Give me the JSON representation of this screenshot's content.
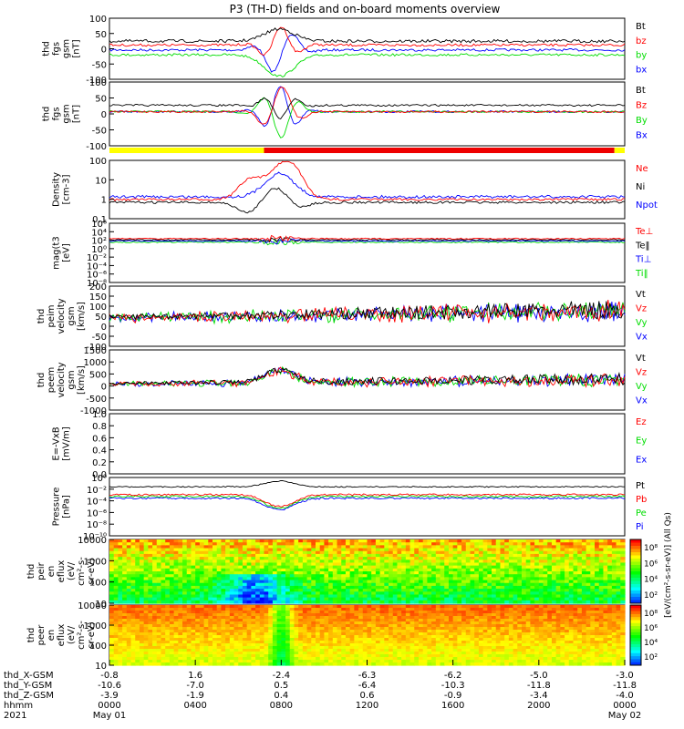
{
  "title": "P3 (TH-D) fields and on-board moments overview",
  "colors": {
    "black": "#000000",
    "red": "#ff0000",
    "green": "#00dd00",
    "blue": "#0000ff",
    "yellow": "#ffff00",
    "bar_red": "#ee0000"
  },
  "chart_data": [
    {
      "type": "line",
      "name": "fgs",
      "ylabel": [
        "thd",
        "fgs",
        "gsm",
        "[nT]"
      ],
      "yticks": [
        "100",
        "50",
        "0",
        "-50",
        "-100"
      ],
      "legend": [
        {
          "text": "Bt",
          "color": "#000000"
        },
        {
          "text": "bz",
          "color": "#ff0000"
        },
        {
          "text": "by",
          "color": "#00dd00"
        },
        {
          "text": "bx",
          "color": "#0000ff"
        }
      ]
    },
    {
      "type": "line",
      "name": "fgs-zoom",
      "ylabel": [
        "thd",
        "fgs",
        "gsm",
        "[nT]"
      ],
      "yticks": [
        "100",
        "50",
        "0",
        "-50",
        "-100"
      ],
      "legend": [
        {
          "text": "Bt",
          "color": "#000000"
        },
        {
          "text": "Bz",
          "color": "#ff0000"
        },
        {
          "text": "By",
          "color": "#00dd00"
        },
        {
          "text": "Bx",
          "color": "#0000ff"
        }
      ],
      "mode_bar": [
        {
          "from": 0,
          "to": 0.3,
          "color": "#ffff00"
        },
        {
          "from": 0.3,
          "to": 0.98,
          "color": "#ee0000"
        },
        {
          "from": 0.98,
          "to": 1,
          "color": "#ffff00"
        }
      ]
    },
    {
      "type": "line",
      "name": "density",
      "ylabel": [
        "Density",
        "[cm-3]"
      ],
      "yticks": [
        "100",
        "10",
        "1",
        "0.1"
      ],
      "legend": [
        {
          "text": "Ne",
          "color": "#ff0000"
        },
        {
          "text": "Ni",
          "color": "#000000"
        },
        {
          "text": "Npot",
          "color": "#0000ff"
        }
      ]
    },
    {
      "type": "line",
      "name": "temperature",
      "ylabel": [
        "mag(t3",
        "[eV]"
      ],
      "yticks": [
        "10⁶",
        "10⁴",
        "10²",
        "10⁰",
        "10⁻²",
        "10⁻⁴",
        "10⁻⁶",
        "10⁻⁸"
      ],
      "legend": [
        {
          "text": "Te⊥",
          "color": "#ff0000"
        },
        {
          "text": "Te‖",
          "color": "#000000"
        },
        {
          "text": "Ti⊥",
          "color": "#0000ff"
        },
        {
          "text": "Ti‖",
          "color": "#00dd00"
        }
      ]
    },
    {
      "type": "line",
      "name": "peim-velocity",
      "ylabel": [
        "thd",
        "peim",
        "velocity",
        "gsm",
        "[km/s]"
      ],
      "yticks": [
        "200",
        "150",
        "100",
        "50",
        "0",
        "-50",
        "-100"
      ],
      "legend": [
        {
          "text": "Vt",
          "color": "#000000"
        },
        {
          "text": "Vz",
          "color": "#ff0000"
        },
        {
          "text": "Vy",
          "color": "#00dd00"
        },
        {
          "text": "Vx",
          "color": "#0000ff"
        }
      ]
    },
    {
      "type": "line",
      "name": "peem-velocity",
      "ylabel": [
        "thd",
        "peem",
        "velocity",
        "gsm",
        "[km/s]"
      ],
      "yticks": [
        "1500",
        "1000",
        "500",
        "0",
        "-500",
        "-1000"
      ],
      "legend": [
        {
          "text": "Vt",
          "color": "#000000"
        },
        {
          "text": "Vz",
          "color": "#ff0000"
        },
        {
          "text": "Vy",
          "color": "#00dd00"
        },
        {
          "text": "Vx",
          "color": "#0000ff"
        }
      ]
    },
    {
      "type": "line",
      "name": "efield",
      "ylabel": [
        "E=-VxB",
        "[mV/m]"
      ],
      "yticks": [
        "1.0",
        "0.8",
        "0.6",
        "0.4",
        "0.2",
        "0.0"
      ],
      "legend": [
        {
          "text": "Ez",
          "color": "#ff0000"
        },
        {
          "text": "Ey",
          "color": "#00dd00"
        },
        {
          "text": "Ex",
          "color": "#0000ff"
        }
      ]
    },
    {
      "type": "line",
      "name": "pressure",
      "ylabel": [
        "Pressure",
        "[nPa]"
      ],
      "yticks": [
        "10⁰",
        "10⁻²",
        "10⁻⁴",
        "10⁻⁶",
        "10⁻⁸",
        "10⁻¹⁰"
      ],
      "legend": [
        {
          "text": "Pt",
          "color": "#000000"
        },
        {
          "text": "Pb",
          "color": "#ff0000"
        },
        {
          "text": "Pe",
          "color": "#00dd00"
        },
        {
          "text": "Pi",
          "color": "#0000ff"
        }
      ]
    },
    {
      "type": "heatmap",
      "name": "peir-spectrogram",
      "ylabel": [
        "thd",
        "peir",
        "en",
        "eflux",
        "(eV/",
        "cm²-s-",
        "sr-eV)"
      ],
      "yticks": [
        "10000",
        "1000",
        "100",
        "10"
      ],
      "colorbar_ticks": [
        "10⁸",
        "10⁶",
        "10⁴",
        "10²"
      ]
    },
    {
      "type": "heatmap",
      "name": "peer-spectrogram",
      "ylabel": [
        "thd",
        "peer",
        "en",
        "eflux",
        "(eV/",
        "cm²-s-",
        "sr-eV)"
      ],
      "yticks": [
        "10000",
        "1000",
        "100",
        "10"
      ],
      "colorbar_ticks": [
        "10⁸",
        "10⁶",
        "10⁴",
        "10²"
      ]
    }
  ],
  "colorbar_label": "[eV/(cm²-s-sr-eV)] (All Qs)",
  "xaxis": {
    "row_labels": [
      "thd_X-GSM",
      "thd_Y-GSM",
      "thd_Z-GSM",
      "hhmm",
      "2021"
    ],
    "columns": [
      [
        "-0.8",
        "-10.6",
        "-3.9",
        "0000",
        "May 01"
      ],
      [
        "1.6",
        "-7.0",
        "-1.9",
        "0400",
        ""
      ],
      [
        "-2.4",
        "0.5",
        "0.4",
        "0800",
        ""
      ],
      [
        "-6.3",
        "-6.4",
        "0.6",
        "1200",
        ""
      ],
      [
        "-6.2",
        "-10.3",
        "-0.9",
        "1600",
        ""
      ],
      [
        "-5.0",
        "-11.8",
        "-3.4",
        "2000",
        ""
      ],
      [
        "-3.0",
        "-11.8",
        "-4.0",
        "0000",
        "May 02"
      ]
    ]
  }
}
